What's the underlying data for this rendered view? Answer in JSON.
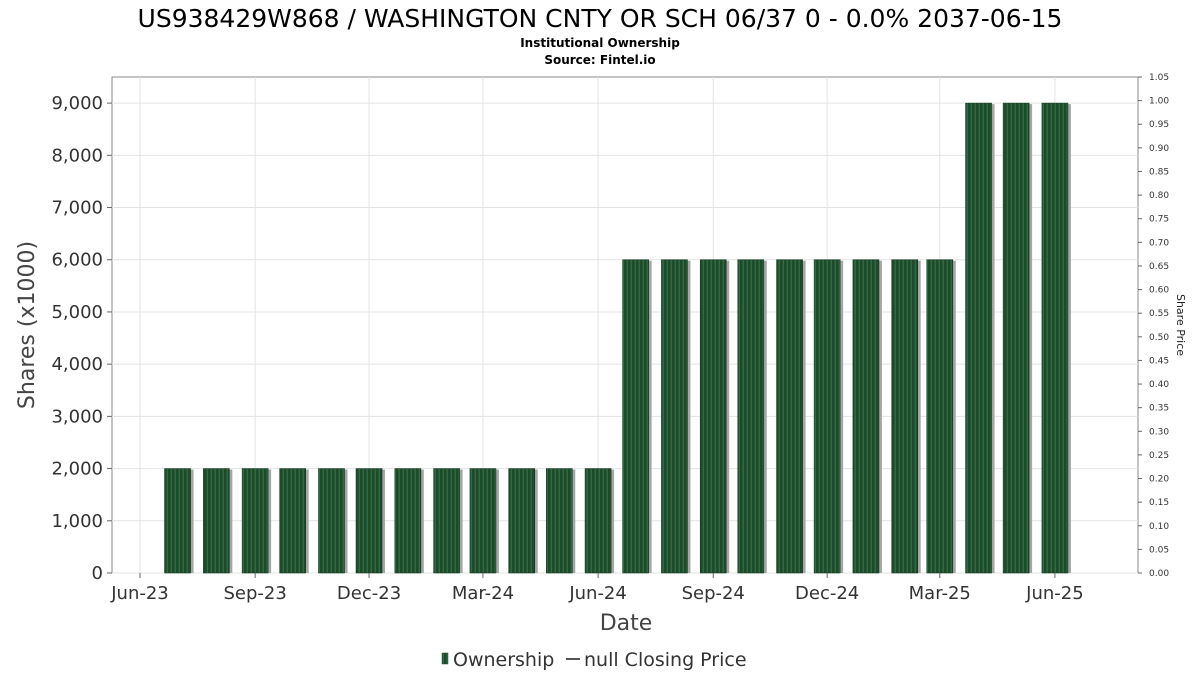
{
  "chart_data": {
    "type": "bar",
    "title": "US938429W868 / WASHINGTON CNTY OR SCH 06/37 0 - 0.0% 2037-06-15",
    "subtitle": "Institutional Ownership",
    "source": "Source: Fintel.io",
    "xlabel": "Date",
    "ylabel": "Shares (x1000)",
    "ylabel_right": "Share Price",
    "ylim": [
      0,
      9500
    ],
    "ylim_right": [
      0,
      1.05
    ],
    "y_ticks": [
      0,
      1000,
      2000,
      3000,
      4000,
      5000,
      6000,
      7000,
      8000,
      9000
    ],
    "y_tick_labels": [
      "0",
      "1,000",
      "2,000",
      "3,000",
      "4,000",
      "5,000",
      "6,000",
      "7,000",
      "8,000",
      "9,000"
    ],
    "y_right_ticks": [
      "0.00",
      "0.05",
      "0.10",
      "0.15",
      "0.20",
      "0.25",
      "0.30",
      "0.35",
      "0.40",
      "0.45",
      "0.50",
      "0.55",
      "0.60",
      "0.65",
      "0.70",
      "0.75",
      "0.80",
      "0.85",
      "0.90",
      "0.95",
      "1.00",
      "1.05"
    ],
    "x_range": [
      "2023-06-01",
      "2025-07-15"
    ],
    "x_ticks": [
      {
        "date": "2023-06-01",
        "label": "Jun-23"
      },
      {
        "date": "2023-09-01",
        "label": "Sep-23"
      },
      {
        "date": "2023-12-01",
        "label": "Dec-23"
      },
      {
        "date": "2024-03-01",
        "label": "Mar-24"
      },
      {
        "date": "2024-06-01",
        "label": "Jun-24"
      },
      {
        "date": "2024-09-01",
        "label": "Sep-24"
      },
      {
        "date": "2024-12-01",
        "label": "Dec-24"
      },
      {
        "date": "2025-03-01",
        "label": "Mar-25"
      },
      {
        "date": "2025-06-01",
        "label": "Jun-25"
      }
    ],
    "grid": true,
    "legend_position": "bottom-center",
    "series": [
      {
        "name": "Ownership",
        "color": "#1e4a2c",
        "points": [
          {
            "date": "2023-07-01",
            "value": 2000
          },
          {
            "date": "2023-08-01",
            "value": 2000
          },
          {
            "date": "2023-09-01",
            "value": 2000
          },
          {
            "date": "2023-10-01",
            "value": 2000
          },
          {
            "date": "2023-11-01",
            "value": 2000
          },
          {
            "date": "2023-12-01",
            "value": 2000
          },
          {
            "date": "2024-01-01",
            "value": 2000
          },
          {
            "date": "2024-02-01",
            "value": 2000
          },
          {
            "date": "2024-03-01",
            "value": 2000
          },
          {
            "date": "2024-04-01",
            "value": 2000
          },
          {
            "date": "2024-05-01",
            "value": 2000
          },
          {
            "date": "2024-06-01",
            "value": 2000
          },
          {
            "date": "2024-07-01",
            "value": 6000
          },
          {
            "date": "2024-08-01",
            "value": 6000
          },
          {
            "date": "2024-09-01",
            "value": 6000
          },
          {
            "date": "2024-10-01",
            "value": 6000
          },
          {
            "date": "2024-11-01",
            "value": 6000
          },
          {
            "date": "2024-12-01",
            "value": 6000
          },
          {
            "date": "2025-01-01",
            "value": 6000
          },
          {
            "date": "2025-02-01",
            "value": 6000
          },
          {
            "date": "2025-03-01",
            "value": 6000
          },
          {
            "date": "2025-04-01",
            "value": 9000
          },
          {
            "date": "2025-05-01",
            "value": 9000
          },
          {
            "date": "2025-06-01",
            "value": 9000
          }
        ]
      }
    ],
    "legend": [
      {
        "label": "Ownership",
        "symbol": "bar",
        "color": "#1e4a2c"
      },
      {
        "label": "null Closing Price",
        "symbol": "line",
        "color": "#555555"
      }
    ]
  }
}
